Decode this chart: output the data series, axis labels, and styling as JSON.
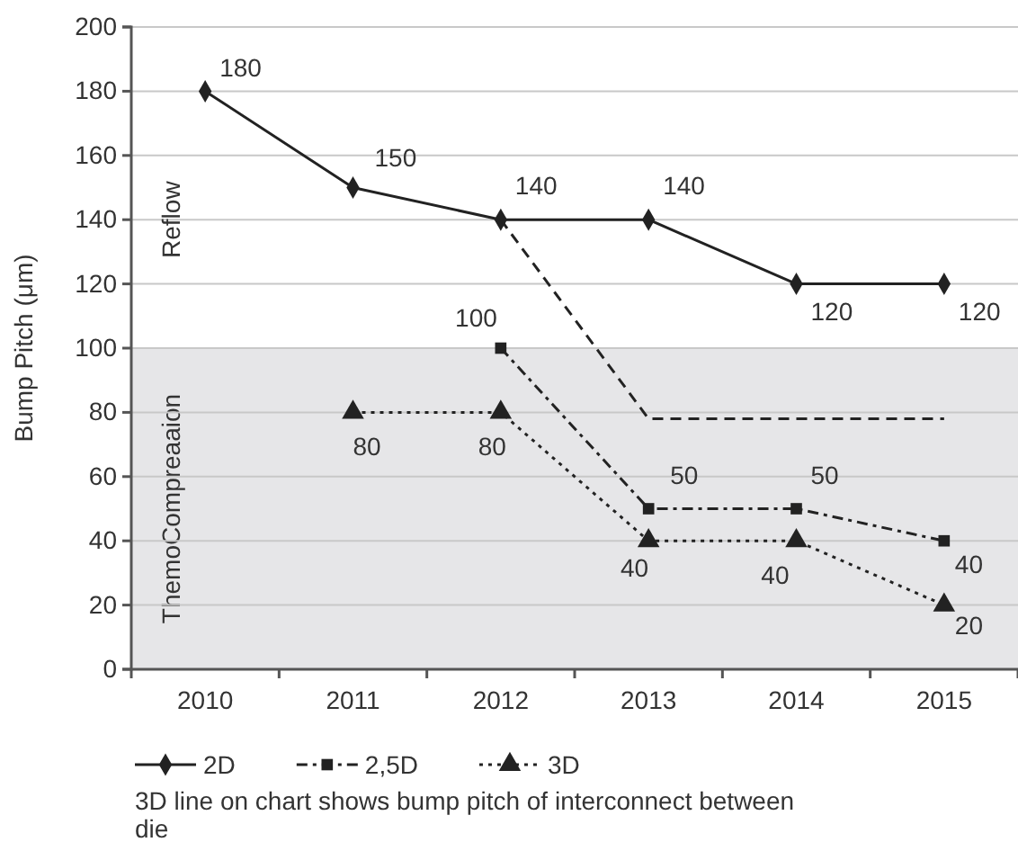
{
  "chart_data": {
    "type": "line",
    "ylabel": "Bump Pitch (μm)",
    "categories": [
      "2010",
      "2011",
      "2012",
      "2013",
      "2014",
      "2015"
    ],
    "series": [
      {
        "name": "2D",
        "color": "#222222",
        "marker": "diamond",
        "line_style": "solid",
        "values": [
          180,
          150,
          140,
          140,
          120,
          120
        ],
        "value_labels": [
          "180",
          "150",
          "140",
          "140",
          "120",
          "120"
        ]
      },
      {
        "name": "2,5D",
        "color": "#222222",
        "marker": "square",
        "line_style": "dashdot",
        "values": [
          null,
          null,
          100,
          50,
          50,
          40
        ],
        "value_labels": [
          null,
          null,
          "100",
          "50",
          "50",
          "40"
        ]
      },
      {
        "name": "3D",
        "color": "#222222",
        "marker": "triangle",
        "line_style": "dotted",
        "values": [
          null,
          80,
          80,
          40,
          40,
          20
        ],
        "value_labels": [
          null,
          "80",
          "80",
          "40",
          "40",
          "20"
        ]
      },
      {
        "color": "#222222",
        "marker": "none",
        "line_style": "dashed",
        "values": [
          null,
          null,
          140,
          78,
          78,
          78
        ]
      }
    ],
    "ylim": [
      0,
      200
    ],
    "yticks": [
      0,
      20,
      40,
      60,
      80,
      100,
      120,
      140,
      160,
      180,
      200
    ],
    "grid": "y",
    "legend": "bottom",
    "bands": [
      {
        "axis": "y",
        "from": 0,
        "to": 100,
        "label": "ThemoCompreaaion",
        "color": "#e6e6e8"
      }
    ],
    "annotations": [
      "Reflow",
      "3D line on chart shows bump pitch of interconnect between die"
    ]
  }
}
